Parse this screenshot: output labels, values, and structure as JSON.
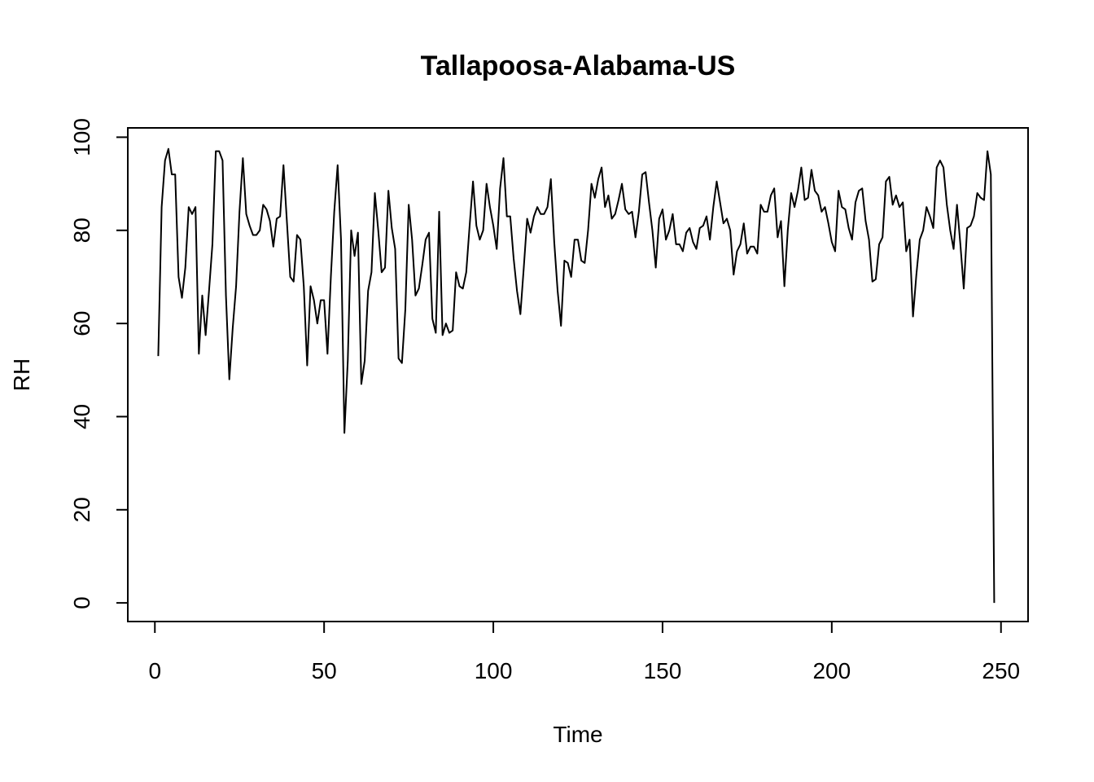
{
  "chart_data": {
    "type": "line",
    "title": "Tallapoosa-Alabama-US",
    "xlabel": "Time",
    "ylabel": "RH",
    "xlim": [
      -8,
      258
    ],
    "ylim": [
      -4,
      102
    ],
    "x_ticks": [
      0,
      50,
      100,
      150,
      200,
      250
    ],
    "y_ticks": [
      0,
      20,
      40,
      60,
      80,
      100
    ],
    "grid": false,
    "line_color": "#000000",
    "series": [
      {
        "x_start": 1,
        "values": [
          53,
          85,
          95,
          97.5,
          92,
          92,
          70,
          65.5,
          72,
          85,
          83.5,
          85,
          53.5,
          66,
          57.5,
          67,
          77,
          97,
          97,
          95,
          66,
          48,
          59,
          68,
          84,
          95.5,
          83.5,
          81,
          79,
          79,
          80,
          85.5,
          84.5,
          82,
          76.5,
          82.5,
          83,
          94,
          82,
          70,
          69,
          79,
          78,
          68,
          51,
          68,
          65,
          60,
          65,
          65,
          53.5,
          70,
          84,
          94,
          78,
          36.5,
          52,
          80,
          74.5,
          79.5,
          47,
          52,
          67,
          71,
          88,
          80,
          71,
          72,
          88.5,
          80.5,
          76,
          52.5,
          51.5,
          63,
          85.5,
          78,
          66,
          67.5,
          72.5,
          78,
          79.5,
          61,
          58,
          84,
          57.5,
          60,
          58,
          58.5,
          71,
          68,
          67.5,
          71,
          81,
          90.5,
          81,
          78,
          80,
          90,
          85,
          81,
          76,
          89,
          95.5,
          83,
          83,
          74,
          67,
          62,
          72,
          82.5,
          79.5,
          83,
          85,
          83.5,
          83.5,
          85,
          91,
          77.5,
          67,
          59.5,
          73.5,
          73,
          70,
          78,
          78,
          73.5,
          73,
          80,
          90,
          87,
          91,
          93.5,
          85,
          87.5,
          82.5,
          83.5,
          86.5,
          90,
          84.5,
          83.5,
          84,
          78.5,
          84,
          92,
          92.5,
          86,
          80,
          72,
          82.5,
          84.5,
          78,
          80,
          83.5,
          77,
          77,
          75.5,
          79.5,
          80.5,
          77.5,
          76,
          80.5,
          81,
          83,
          78,
          85,
          90.5,
          86,
          81.5,
          82.5,
          80,
          70.5,
          75.5,
          77,
          81.5,
          75,
          76.5,
          76.5,
          75,
          85.5,
          84,
          84,
          87.5,
          89,
          78.5,
          82,
          68,
          80,
          88,
          85,
          88.5,
          93.5,
          86.5,
          87,
          93,
          88.5,
          87.5,
          84,
          85,
          81.5,
          77.5,
          75.5,
          88.5,
          85,
          84.5,
          80.5,
          78,
          86,
          88.5,
          89,
          82,
          78,
          69,
          69.5,
          77,
          78.5,
          90.5,
          91.5,
          85.5,
          87.5,
          85,
          86,
          75.5,
          78,
          61.5,
          70.5,
          78,
          80,
          85,
          83,
          80.5,
          93.5,
          95,
          93.5,
          85.5,
          80,
          76,
          85.5,
          77,
          67.5,
          80.5,
          81,
          83,
          88,
          87,
          86.5,
          97,
          92,
          0
        ]
      }
    ]
  }
}
